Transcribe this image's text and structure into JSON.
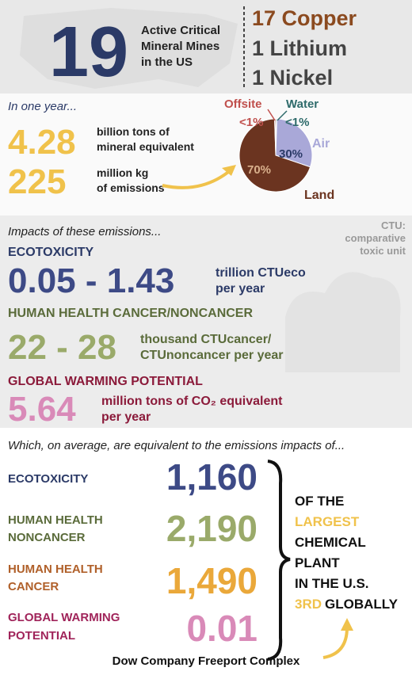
{
  "header": {
    "count": "19",
    "label_lines": [
      "Active Critical",
      "Mineral Mines",
      "in the US"
    ],
    "minerals": [
      "17 Copper",
      "1 Lithium",
      "1 Nickel"
    ]
  },
  "annual": {
    "heading": "In one year...",
    "stats": [
      {
        "value": "4.28",
        "unit_lines": [
          "billion tons of",
          "mineral equivalent"
        ]
      },
      {
        "value": "225",
        "unit_lines": [
          "million kg",
          "of emissions"
        ]
      }
    ],
    "pie": {
      "slices": [
        {
          "name": "Water",
          "value": 0.5,
          "label": "<1%",
          "color": "#2e6b6b"
        },
        {
          "name": "Air",
          "value": 30,
          "label": "30%",
          "color": "#a9a8d8"
        },
        {
          "name": "Land",
          "value": 70,
          "label": "70%",
          "color": "#6b3420"
        },
        {
          "name": "Offsite",
          "value": 0.5,
          "label": "<1%",
          "color": "#c0504d"
        }
      ]
    }
  },
  "impacts": {
    "heading": "Impacts of these emissions...",
    "note_lines": [
      "CTU:",
      "comparative",
      "toxic unit"
    ],
    "items": [
      {
        "title": "ECOTOXICITY",
        "value": "0.05 - 1.43",
        "unit_lines": [
          "trillion CTUeco",
          "per year"
        ]
      },
      {
        "title": "HUMAN HEALTH CANCER/NONCANCER",
        "value": "22 - 28",
        "unit_lines": [
          "thousand CTUcancer/",
          "CTUnoncancer per year"
        ]
      },
      {
        "title": "GLOBAL WARMING POTENTIAL",
        "value": "5.64",
        "unit_lines": [
          "million tons of CO₂ equivalent",
          "per year"
        ]
      }
    ]
  },
  "equivalents": {
    "heading": "Which, on average, are equivalent to the emissions impacts of...",
    "rows": [
      {
        "label_lines": [
          "ECOTOXICITY"
        ],
        "value": "1,160"
      },
      {
        "label_lines": [
          "HUMAN HEALTH",
          "NONCANCER"
        ],
        "value": "2,190"
      },
      {
        "label_lines": [
          "HUMAN HEALTH",
          "CANCER"
        ],
        "value": "1,490"
      },
      {
        "label_lines": [
          "GLOBAL WARMING",
          "POTENTIAL"
        ],
        "value": "0.01"
      }
    ],
    "reference": [
      "OF THE",
      "LARGEST",
      "CHEMICAL",
      "PLANT",
      "IN THE U.S.",
      "3RD",
      "GLOBALLY"
    ],
    "facility": "Dow Company Freeport Complex"
  }
}
